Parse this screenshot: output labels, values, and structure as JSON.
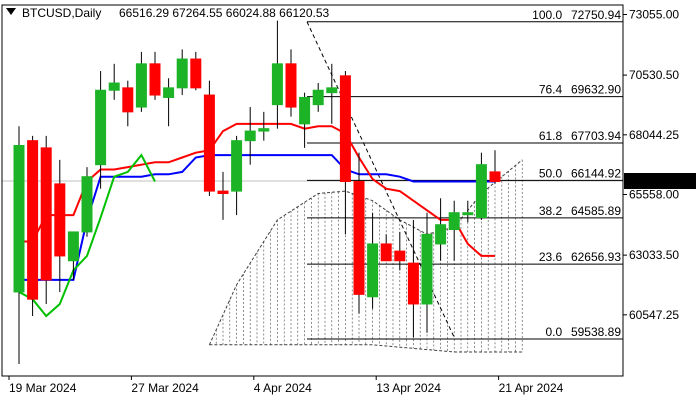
{
  "header": {
    "menu_icon": "triangle-down-icon",
    "symbol": "BTCUSD,Daily",
    "ohlc": "66516.29 67264.55 66024.88 66120.53"
  },
  "colors": {
    "bull": "#1db327",
    "bear": "#ff0000",
    "wick": "#000000",
    "fast_ma": "#ff0000",
    "slow_ma": "#0000ff",
    "lag_line": "#00c000",
    "fib": "#000000",
    "cloud": "#404040",
    "price_label_bg": "#000000",
    "price_label_text": "#ffffff"
  },
  "chart_data": {
    "type": "candlestick",
    "price_range": [
      58000,
      73450
    ],
    "last_price": "66120.53",
    "y_ticks": [
      "73055.00",
      "70530.50",
      "68044.25",
      "65558.00",
      "63033.50",
      "60547.25"
    ],
    "x_ticks": [
      "19 Mar 2024",
      "27 Mar 2024",
      "4 Apr 2024",
      "13 Apr 2024",
      "21 Apr 2024"
    ],
    "candles": [
      {
        "o": 61500,
        "h": 68400,
        "l": 58500,
        "c": 67600
      },
      {
        "o": 67800,
        "h": 68000,
        "l": 60500,
        "c": 61200
      },
      {
        "o": 67500,
        "h": 68000,
        "l": 61000,
        "c": 62000
      },
      {
        "o": 66000,
        "h": 67000,
        "l": 61500,
        "c": 63000
      },
      {
        "o": 62800,
        "h": 64000,
        "l": 62000,
        "c": 64000
      },
      {
        "o": 64000,
        "h": 66700,
        "l": 63800,
        "c": 66300
      },
      {
        "o": 66800,
        "h": 70700,
        "l": 65800,
        "c": 69900
      },
      {
        "o": 69900,
        "h": 71000,
        "l": 69500,
        "c": 70200
      },
      {
        "o": 70000,
        "h": 70300,
        "l": 68400,
        "c": 69000
      },
      {
        "o": 69200,
        "h": 71500,
        "l": 69000,
        "c": 71000
      },
      {
        "o": 71000,
        "h": 71500,
        "l": 69500,
        "c": 69700
      },
      {
        "o": 69600,
        "h": 70400,
        "l": 68400,
        "c": 70000
      },
      {
        "o": 70000,
        "h": 71600,
        "l": 69700,
        "c": 71200
      },
      {
        "o": 71200,
        "h": 71500,
        "l": 69900,
        "c": 70000
      },
      {
        "o": 69700,
        "h": 70300,
        "l": 65500,
        "c": 65700
      },
      {
        "o": 65700,
        "h": 66500,
        "l": 64500,
        "c": 65600
      },
      {
        "o": 65700,
        "h": 68000,
        "l": 64700,
        "c": 67800
      },
      {
        "o": 67800,
        "h": 69200,
        "l": 66800,
        "c": 68200
      },
      {
        "o": 68200,
        "h": 69000,
        "l": 67800,
        "c": 68300
      },
      {
        "o": 69300,
        "h": 72800,
        "l": 68300,
        "c": 71000
      },
      {
        "o": 71000,
        "h": 71600,
        "l": 68800,
        "c": 69200
      },
      {
        "o": 68500,
        "h": 69800,
        "l": 67500,
        "c": 69600
      },
      {
        "o": 69300,
        "h": 70200,
        "l": 69000,
        "c": 69900
      },
      {
        "o": 69800,
        "h": 71000,
        "l": 68500,
        "c": 70000
      },
      {
        "o": 70500,
        "h": 70700,
        "l": 63900,
        "c": 66100
      },
      {
        "o": 66100,
        "h": 67300,
        "l": 60600,
        "c": 61400
      },
      {
        "o": 61300,
        "h": 64800,
        "l": 60800,
        "c": 63500
      },
      {
        "o": 63500,
        "h": 63900,
        "l": 62800,
        "c": 62800
      },
      {
        "o": 63200,
        "h": 64000,
        "l": 62400,
        "c": 62800
      },
      {
        "o": 62700,
        "h": 64500,
        "l": 59600,
        "c": 61000
      },
      {
        "o": 61000,
        "h": 64800,
        "l": 59800,
        "c": 63900
      },
      {
        "o": 63500,
        "h": 65400,
        "l": 62800,
        "c": 64300
      },
      {
        "o": 64100,
        "h": 65300,
        "l": 62800,
        "c": 64800
      },
      {
        "o": 64800,
        "h": 65300,
        "l": 64400,
        "c": 64800
      },
      {
        "o": 64600,
        "h": 67300,
        "l": 64500,
        "c": 66800
      },
      {
        "o": 66500,
        "h": 67400,
        "l": 66000,
        "c": 66100
      }
    ],
    "tenkan": [
      63600,
      63600,
      64700,
      64700,
      64700,
      66100,
      66600,
      66600,
      66700,
      66800,
      66900,
      66900,
      67100,
      67300,
      67400,
      68200,
      68500,
      68500,
      68500,
      68500,
      68500,
      68300,
      68400,
      68400,
      68100,
      67100,
      66200,
      65800,
      65700,
      65300,
      64900,
      64500,
      64500,
      63500,
      63000,
      63000
    ],
    "kijun": [
      62000,
      62000,
      62000,
      62000,
      62000,
      64500,
      66300,
      66300,
      66300,
      66300,
      66400,
      66400,
      66500,
      67100,
      67200,
      67200,
      67200,
      67200,
      67200,
      67200,
      67200,
      67200,
      67200,
      67200,
      66600,
      66400,
      66400,
      66400,
      66300,
      66100,
      66100,
      66100,
      66100,
      66100,
      66100,
      66100
    ],
    "chikou": [
      61500,
      61200,
      60500,
      61000,
      62400,
      63000,
      64600,
      66300,
      66500,
      67200,
      66100
    ],
    "cloud_top": [
      {
        "i": 14,
        "v": 59300
      },
      {
        "i": 16,
        "v": 61800
      },
      {
        "i": 19,
        "v": 64500
      },
      {
        "i": 22,
        "v": 65600
      },
      {
        "i": 24,
        "v": 65700
      },
      {
        "i": 26,
        "v": 65300
      },
      {
        "i": 28,
        "v": 64500
      },
      {
        "i": 30,
        "v": 63900
      },
      {
        "i": 32,
        "v": 64200
      },
      {
        "i": 34,
        "v": 65600
      },
      {
        "i": 37,
        "v": 67000
      }
    ],
    "cloud_bottom": [
      {
        "i": 14,
        "v": 59300
      },
      {
        "i": 20,
        "v": 59300
      },
      {
        "i": 26,
        "v": 59300
      },
      {
        "i": 32,
        "v": 59000
      },
      {
        "i": 37,
        "v": 59000
      }
    ],
    "fib_levels": [
      {
        "ratio": "100.0",
        "price": "72750.94",
        "value": 72750.94
      },
      {
        "ratio": "76.4",
        "price": "69632.90",
        "value": 69632.9
      },
      {
        "ratio": "61.8",
        "price": "67703.94",
        "value": 67703.94
      },
      {
        "ratio": "50.0",
        "price": "66144.92",
        "value": 66144.92
      },
      {
        "ratio": "38.2",
        "price": "64585.89",
        "value": 64585.89
      },
      {
        "ratio": "23.6",
        "price": "62656.93",
        "value": 62656.93
      },
      {
        "ratio": "0.0",
        "price": "59538.89",
        "value": 59538.89
      }
    ]
  }
}
